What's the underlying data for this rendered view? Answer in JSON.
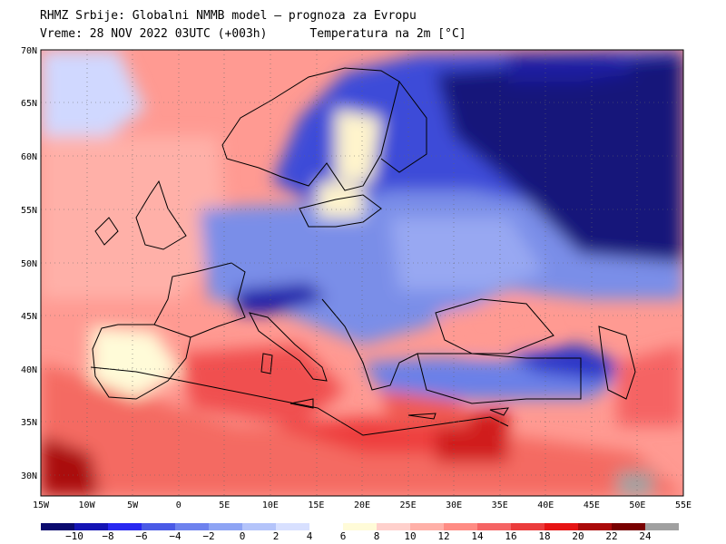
{
  "header": {
    "line1": "RHMZ Srbije: Globalni NMMB model — prognoza za Evropu",
    "line2": "Vreme: 28 NOV 2022 03UTC (+003h)      Temperatura na 2m [°C]"
  },
  "map": {
    "lon_range": [
      -15,
      55
    ],
    "lat_range": [
      28,
      70
    ],
    "lat_labels": [
      "70N",
      "65N",
      "60N",
      "55N",
      "50N",
      "45N",
      "40N",
      "35N",
      "30N"
    ],
    "lon_labels": [
      "15W",
      "10W",
      "5W",
      "0",
      "5E",
      "10E",
      "15E",
      "20E",
      "25E",
      "30E",
      "35E",
      "40E",
      "45E",
      "50E",
      "55E"
    ]
  },
  "colorbar": {
    "labels": [
      "−10",
      "−8",
      "−6",
      "−4",
      "−2",
      "0",
      "2",
      "4",
      "6",
      "8",
      "10",
      "12",
      "14",
      "16",
      "18",
      "20",
      "22",
      "24"
    ],
    "colors": [
      "#0a0a6e",
      "#1414b4",
      "#2828f0",
      "#4a5ae6",
      "#6e82ee",
      "#8ea4f4",
      "#b4c4fa",
      "#d8e0ff",
      "#ffffff",
      "#fffbd8",
      "#ffd0cc",
      "#ffb0a8",
      "#ff8c84",
      "#f56464",
      "#eb3c3c",
      "#e61414",
      "#aa0a0a",
      "#780000",
      "#a0a0a0"
    ]
  }
}
